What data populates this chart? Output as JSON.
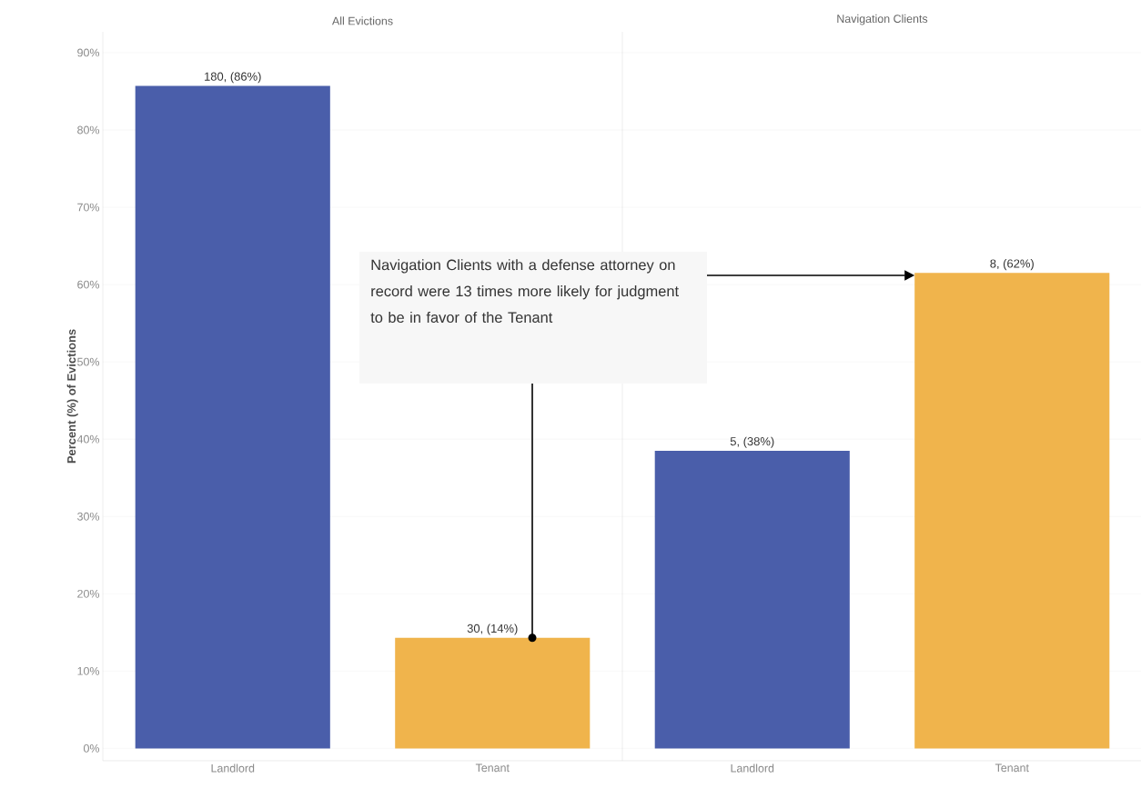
{
  "chart_data": [
    {
      "type": "bar",
      "title": "All Evictions",
      "ylabel": "Percent (%) of Evictions",
      "categories": [
        "Landlord",
        "Tenant"
      ],
      "values": [
        85.7,
        14.3
      ],
      "colors": [
        "#4a5eaa",
        "#f0b44c"
      ],
      "value_labels": [
        "180, (86%)",
        "30, (14%)"
      ],
      "ylim": [
        -1.6,
        92.7
      ],
      "yticks": [
        {
          "value": 0,
          "label": "0%"
        },
        {
          "value": 10,
          "label": "10%"
        },
        {
          "value": 20,
          "label": "20%"
        },
        {
          "value": 30,
          "label": "30%"
        },
        {
          "value": 40,
          "label": "40%"
        },
        {
          "value": 50,
          "label": "50%"
        },
        {
          "value": 60,
          "label": "60%"
        },
        {
          "value": 70,
          "label": "70%"
        },
        {
          "value": 80,
          "label": "80%"
        },
        {
          "value": 90,
          "label": "90%"
        }
      ],
      "grid": "y",
      "annotations": [
        "Navigation Clients with a defense attorney on record were 13 times more likely for judgment to be in favor of the Tenant"
      ]
    },
    {
      "type": "bar",
      "title": "Navigation Clients",
      "categories": [
        "Landlord",
        "Tenant"
      ],
      "values": [
        38.5,
        61.5
      ],
      "colors": [
        "#4a5eaa",
        "#f0b44c"
      ],
      "value_labels": [
        "5, (38%)",
        "8, (62%)"
      ],
      "ylim": [
        -1.6,
        92.7
      ],
      "yticks": [
        {
          "value": 0,
          "label": null
        },
        {
          "value": 10,
          "label": null
        },
        {
          "value": 20,
          "label": null
        },
        {
          "value": 30,
          "label": null
        },
        {
          "value": 40,
          "label": null
        },
        {
          "value": 50,
          "label": null
        },
        {
          "value": 60,
          "label": null
        },
        {
          "value": 70,
          "label": null
        },
        {
          "value": 80,
          "label": null
        },
        {
          "value": 90,
          "label": null
        }
      ],
      "grid": "y",
      "tick_labels": "x"
    }
  ]
}
